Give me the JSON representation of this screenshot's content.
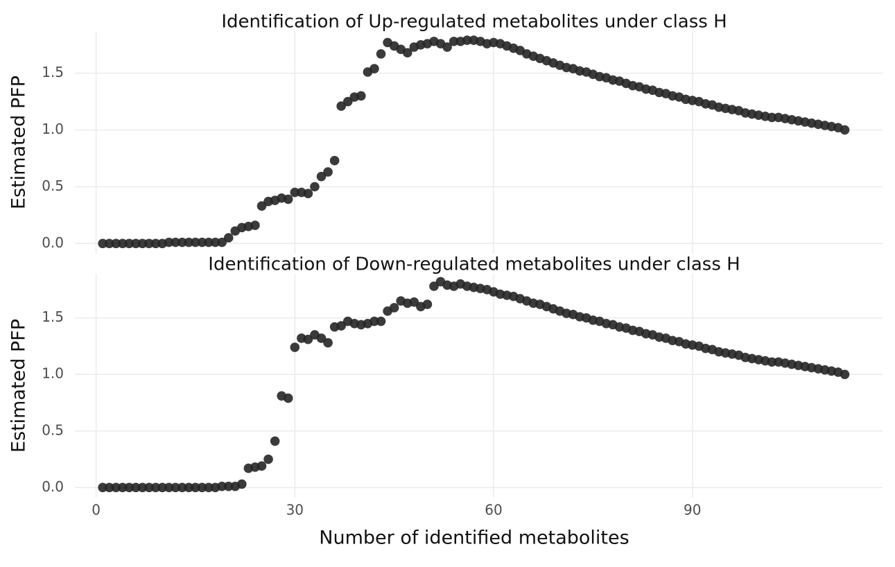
{
  "chart_data": [
    {
      "type": "scatter",
      "title": "Identification of Up-regulated metabolites under class H",
      "ylabel": "Estimated PFP",
      "x": [
        1,
        2,
        3,
        4,
        5,
        6,
        7,
        8,
        9,
        10,
        11,
        12,
        13,
        14,
        15,
        16,
        17,
        18,
        19,
        20,
        21,
        22,
        23,
        24,
        25,
        26,
        27,
        28,
        29,
        30,
        31,
        32,
        33,
        34,
        35,
        36,
        37,
        38,
        39,
        40,
        41,
        42,
        43,
        44,
        45,
        46,
        47,
        48,
        49,
        50,
        51,
        52,
        53,
        54,
        55,
        56,
        57,
        58,
        59,
        60,
        61,
        62,
        63,
        64,
        65,
        66,
        67,
        68,
        69,
        70,
        71,
        72,
        73,
        74,
        75,
        76,
        77,
        78,
        79,
        80,
        81,
        82,
        83,
        84,
        85,
        86,
        87,
        88,
        89,
        90,
        91,
        92,
        93,
        94,
        95,
        96,
        97,
        98,
        99,
        100,
        101,
        102,
        103,
        104,
        105,
        106,
        107,
        108,
        109,
        110,
        111,
        112,
        113
      ],
      "values": [
        0,
        0,
        0,
        0,
        0,
        0,
        0,
        0,
        0,
        0,
        0.01,
        0.01,
        0.01,
        0.01,
        0.01,
        0.01,
        0.01,
        0.01,
        0.01,
        0.05,
        0.11,
        0.14,
        0.15,
        0.16,
        0.33,
        0.37,
        0.38,
        0.4,
        0.39,
        0.45,
        0.45,
        0.44,
        0.5,
        0.59,
        0.63,
        0.73,
        1.21,
        1.25,
        1.29,
        1.3,
        1.51,
        1.54,
        1.67,
        1.77,
        1.74,
        1.71,
        1.68,
        1.73,
        1.75,
        1.76,
        1.78,
        1.76,
        1.73,
        1.78,
        1.78,
        1.79,
        1.79,
        1.78,
        1.76,
        1.77,
        1.76,
        1.74,
        1.72,
        1.7,
        1.67,
        1.65,
        1.63,
        1.61,
        1.59,
        1.57,
        1.55,
        1.54,
        1.52,
        1.51,
        1.49,
        1.47,
        1.46,
        1.44,
        1.43,
        1.41,
        1.39,
        1.38,
        1.36,
        1.35,
        1.33,
        1.32,
        1.3,
        1.29,
        1.27,
        1.26,
        1.25,
        1.23,
        1.22,
        1.2,
        1.19,
        1.18,
        1.17,
        1.15,
        1.14,
        1.13,
        1.12,
        1.11,
        1.11,
        1.1,
        1.09,
        1.08,
        1.07,
        1.06,
        1.05,
        1.04,
        1.03,
        1.02,
        1.0
      ],
      "color": "#262626",
      "xlim": [
        -3.2,
        118.7
      ],
      "ylim": [
        -0.09,
        1.87
      ],
      "yticks": [
        {
          "value": 0,
          "label": "0.0"
        },
        0.5,
        {
          "value": 1,
          "label": "1.0"
        },
        1.5
      ],
      "xticks": [
        0,
        30,
        60,
        90
      ],
      "grid": true
    },
    {
      "type": "scatter",
      "title": "Identification of Down-regulated metabolites under class H",
      "ylabel": "Estimated PFP",
      "xlabel": "Number of identified metabolites",
      "x": [
        1,
        2,
        3,
        4,
        5,
        6,
        7,
        8,
        9,
        10,
        11,
        12,
        13,
        14,
        15,
        16,
        17,
        18,
        19,
        20,
        21,
        22,
        23,
        24,
        25,
        26,
        27,
        28,
        29,
        30,
        31,
        32,
        33,
        34,
        35,
        36,
        37,
        38,
        39,
        40,
        41,
        42,
        43,
        44,
        45,
        46,
        47,
        48,
        49,
        50,
        51,
        52,
        53,
        54,
        55,
        56,
        57,
        58,
        59,
        60,
        61,
        62,
        63,
        64,
        65,
        66,
        67,
        68,
        69,
        70,
        71,
        72,
        73,
        74,
        75,
        76,
        77,
        78,
        79,
        80,
        81,
        82,
        83,
        84,
        85,
        86,
        87,
        88,
        89,
        90,
        91,
        92,
        93,
        94,
        95,
        96,
        97,
        98,
        99,
        100,
        101,
        102,
        103,
        104,
        105,
        106,
        107,
        108,
        109,
        110,
        111,
        112,
        113
      ],
      "values": [
        0,
        0,
        0,
        0,
        0,
        0,
        0,
        0,
        0,
        0,
        0,
        0,
        0,
        0,
        0,
        0,
        0,
        0,
        0.01,
        0.01,
        0.01,
        0.03,
        0.17,
        0.18,
        0.19,
        0.25,
        0.41,
        0.81,
        0.79,
        1.24,
        1.32,
        1.31,
        1.35,
        1.32,
        1.28,
        1.42,
        1.43,
        1.47,
        1.45,
        1.44,
        1.45,
        1.47,
        1.47,
        1.56,
        1.59,
        1.65,
        1.63,
        1.64,
        1.6,
        1.62,
        1.78,
        1.82,
        1.79,
        1.78,
        1.8,
        1.78,
        1.77,
        1.76,
        1.75,
        1.73,
        1.71,
        1.7,
        1.69,
        1.67,
        1.65,
        1.63,
        1.62,
        1.6,
        1.58,
        1.56,
        1.54,
        1.53,
        1.51,
        1.5,
        1.48,
        1.47,
        1.45,
        1.44,
        1.42,
        1.41,
        1.39,
        1.38,
        1.36,
        1.35,
        1.33,
        1.32,
        1.3,
        1.29,
        1.27,
        1.26,
        1.25,
        1.23,
        1.22,
        1.2,
        1.19,
        1.18,
        1.17,
        1.15,
        1.14,
        1.13,
        1.12,
        1.11,
        1.11,
        1.1,
        1.09,
        1.08,
        1.07,
        1.06,
        1.05,
        1.04,
        1.03,
        1.02,
        1.0
      ],
      "color": "#262626",
      "xlim": [
        -3.2,
        118.7
      ],
      "ylim": [
        -0.09,
        1.89
      ],
      "yticks": [
        {
          "value": 0,
          "label": "0.0"
        },
        0.5,
        {
          "value": 1,
          "label": "1.0"
        },
        1.5
      ],
      "xticks": [
        0,
        30,
        60,
        90
      ],
      "grid": true
    }
  ]
}
